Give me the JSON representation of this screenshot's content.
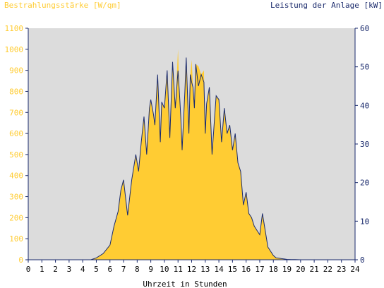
{
  "chart_data": {
    "type": "area",
    "title_left": "Bestrahlungsstärke [W/qm]",
    "title_right": "Leistung der Anlage [kW]",
    "xlabel": "Uhrzeit in Stunden",
    "x_ticks": [
      "0",
      "1",
      "2",
      "3",
      "4",
      "5",
      "6",
      "7",
      "8",
      "9",
      "10",
      "11",
      "12",
      "13",
      "14",
      "15",
      "16",
      "17",
      "18",
      "19",
      "20",
      "21",
      "22",
      "23",
      "24"
    ],
    "y_left_ticks": [
      "0",
      "100",
      "200",
      "300",
      "400",
      "500",
      "600",
      "700",
      "800",
      "900",
      "1000",
      "1100"
    ],
    "y_right_ticks": [
      "0",
      "10",
      "20",
      "30",
      "40",
      "50",
      "60"
    ],
    "xlim": [
      0,
      24
    ],
    "ylim_left": [
      0,
      1100
    ],
    "ylim_right": [
      0,
      60
    ],
    "grid": false,
    "colors": {
      "irradiance_fill": "#ffcc33",
      "power_line": "#1a2a6c",
      "plot_bg": "#dcdcdc",
      "left_axis_text": "#ffcc33",
      "right_axis_text": "#1a2a6c",
      "axis_line": "#1a2a6c"
    },
    "series": [
      {
        "axis": "left",
        "style": "filled-area",
        "x": [
          0,
          4.6,
          5,
          5.5,
          6,
          6.3,
          6.6,
          6.8,
          7,
          7.3,
          7.6,
          7.9,
          8.1,
          8.3,
          8.5,
          8.7,
          8.9,
          9,
          9.2,
          9.3,
          9.5,
          9.7,
          9.8,
          10,
          10.2,
          10.4,
          10.6,
          10.8,
          11,
          11.1,
          11.2,
          11.3,
          11.5,
          11.6,
          11.8,
          11.9,
          12,
          12.1,
          12.2,
          12.3,
          12.5,
          12.7,
          12.9,
          13,
          13.1,
          13.3,
          13.5,
          13.7,
          13.8,
          14,
          14.2,
          14.4,
          14.6,
          14.8,
          15,
          15.2,
          15.4,
          15.6,
          15.8,
          16,
          16.2,
          16.4,
          16.6,
          16.8,
          17,
          17.2,
          17.4,
          17.6,
          17.8,
          18,
          18.2,
          18.4,
          18.6,
          18.8,
          19,
          19.3,
          19.6,
          20,
          20.3,
          20.5,
          24
        ],
        "y": [
          0,
          0,
          10,
          30,
          70,
          160,
          230,
          330,
          380,
          210,
          380,
          500,
          420,
          560,
          680,
          500,
          720,
          760,
          690,
          640,
          880,
          560,
          750,
          720,
          900,
          580,
          940,
          720,
          1000,
          800,
          680,
          520,
          800,
          960,
          600,
          880,
          950,
          820,
          720,
          930,
          920,
          880,
          900,
          600,
          740,
          820,
          500,
          690,
          780,
          760,
          560,
          720,
          600,
          640,
          520,
          600,
          460,
          420,
          260,
          320,
          220,
          200,
          160,
          140,
          120,
          220,
          140,
          60,
          40,
          20,
          10,
          8,
          5,
          3,
          2,
          1,
          1,
          0,
          0,
          0,
          0
        ]
      },
      {
        "axis": "right",
        "style": "line",
        "x": [
          0,
          4.6,
          5,
          5.5,
          6,
          6.3,
          6.6,
          6.8,
          7,
          7.3,
          7.6,
          7.9,
          8.1,
          8.3,
          8.5,
          8.7,
          8.9,
          9,
          9.2,
          9.3,
          9.5,
          9.7,
          9.8,
          10,
          10.2,
          10.4,
          10.6,
          10.8,
          11,
          11.1,
          11.2,
          11.3,
          11.5,
          11.6,
          11.8,
          11.9,
          12,
          12.1,
          12.2,
          12.3,
          12.5,
          12.7,
          12.9,
          13,
          13.1,
          13.3,
          13.5,
          13.7,
          13.8,
          14,
          14.2,
          14.4,
          14.6,
          14.8,
          15,
          15.2,
          15.4,
          15.6,
          15.8,
          16,
          16.2,
          16.4,
          16.6,
          16.8,
          17,
          17.2,
          17.4,
          17.6,
          17.8,
          18,
          18.2,
          18.4,
          18.6,
          18.8,
          19,
          19.3,
          19.6,
          20,
          20.3,
          20.5,
          24
        ],
        "y": [
          0,
          0,
          0.5,
          1.6,
          3.8,
          8.7,
          12.5,
          18,
          20.7,
          11.5,
          20.7,
          27.3,
          22.9,
          30.5,
          37.1,
          27.3,
          39.3,
          41.5,
          37.6,
          34.9,
          48,
          30.5,
          40.9,
          39.3,
          49.1,
          31.6,
          51.3,
          39.3,
          49,
          43.6,
          37.1,
          28.4,
          43.6,
          52.4,
          32.7,
          48,
          46,
          44.7,
          39.3,
          50.7,
          45,
          48,
          46,
          32.7,
          40.4,
          44.7,
          27.3,
          37.6,
          42.5,
          41.5,
          30.5,
          39.3,
          32.7,
          34.9,
          28.4,
          32.7,
          25.1,
          22.9,
          14.2,
          17.5,
          12,
          10.9,
          8.7,
          7.6,
          6.5,
          12,
          7.6,
          3.3,
          2.2,
          1.1,
          0.5,
          0.4,
          0.3,
          0.2,
          0.1,
          0.05,
          0.05,
          0,
          0,
          0,
          0
        ]
      }
    ]
  }
}
